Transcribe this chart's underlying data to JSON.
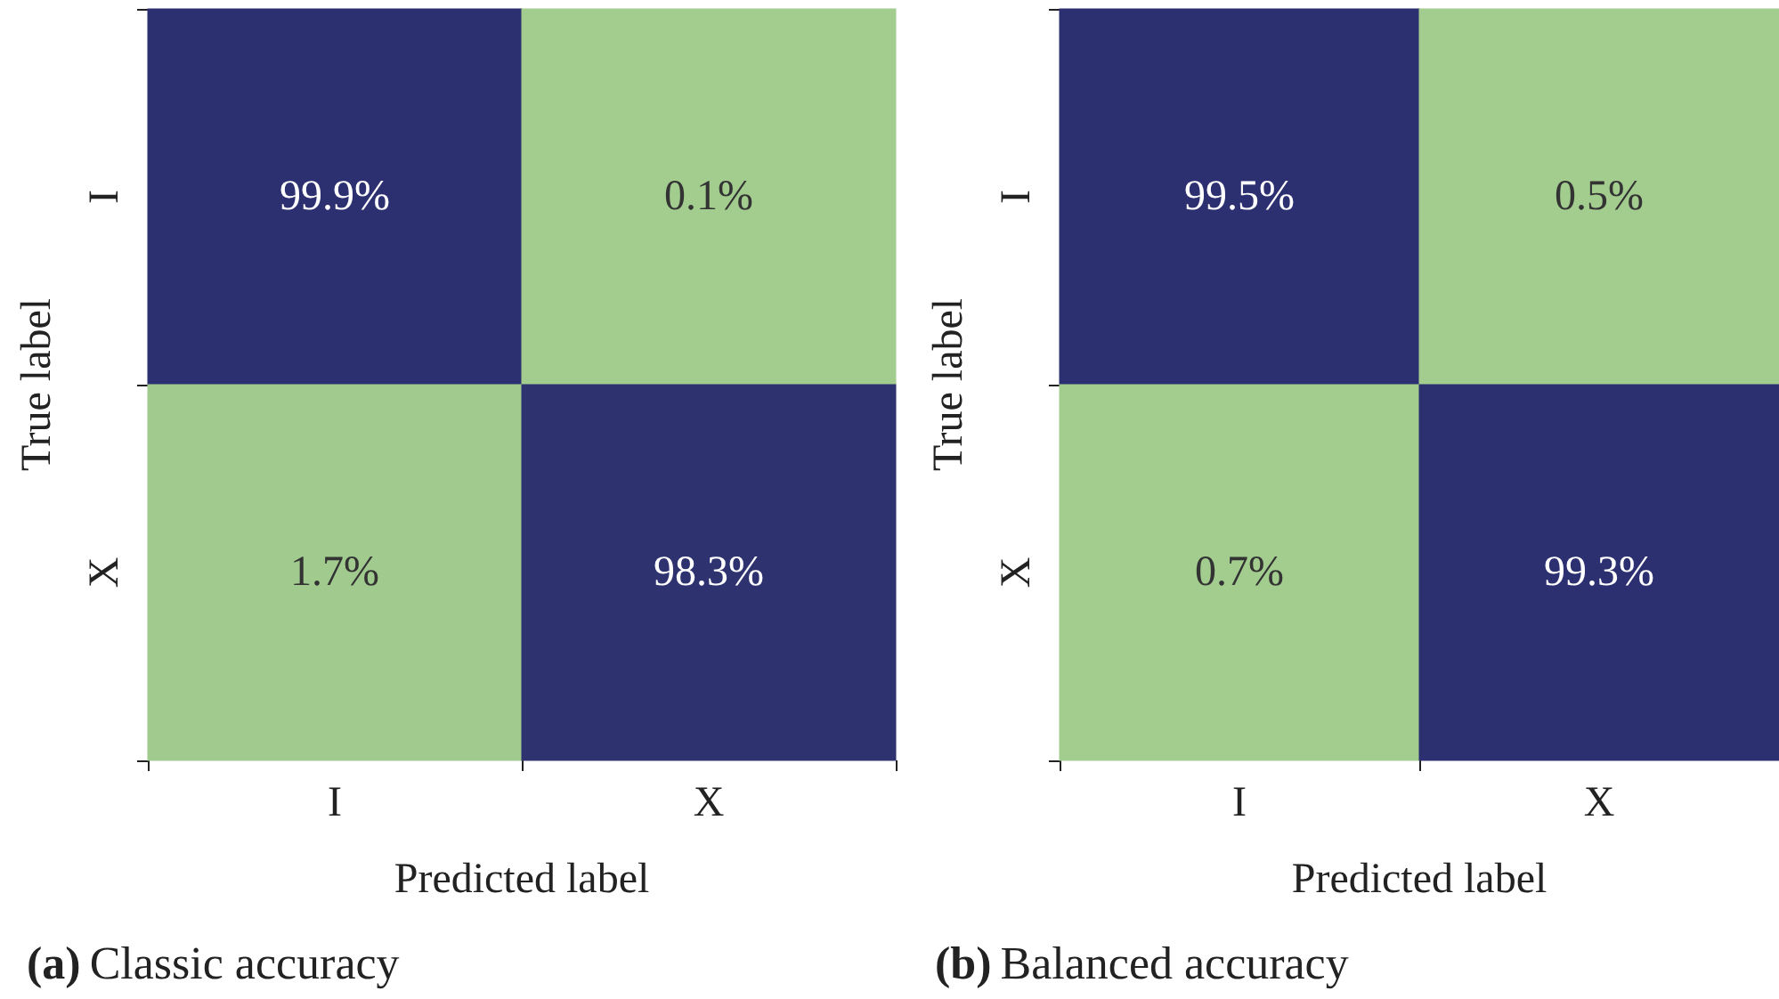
{
  "chart_data": [
    {
      "type": "heatmap",
      "title": "(a) Classic accuracy",
      "xlabel": "Predicted label",
      "ylabel": "True label",
      "categories": [
        "I",
        "X"
      ],
      "y_categories": [
        "I",
        "X"
      ],
      "cells": [
        [
          99.9,
          0.1
        ],
        [
          1.7,
          98.3
        ]
      ],
      "cell_labels": [
        [
          "99.9%",
          "0.1%"
        ],
        [
          "1.7%",
          "98.3%"
        ]
      ]
    },
    {
      "type": "heatmap",
      "title": "(b) Balanced accuracy",
      "xlabel": "Predicted label",
      "ylabel": "True label",
      "categories": [
        "I",
        "X"
      ],
      "y_categories": [
        "I",
        "X"
      ],
      "cells": [
        [
          99.5,
          0.5
        ],
        [
          0.7,
          99.3
        ]
      ],
      "cell_labels": [
        [
          "99.5%",
          "0.5%"
        ],
        [
          "0.7%",
          "99.3%"
        ]
      ]
    }
  ]
}
